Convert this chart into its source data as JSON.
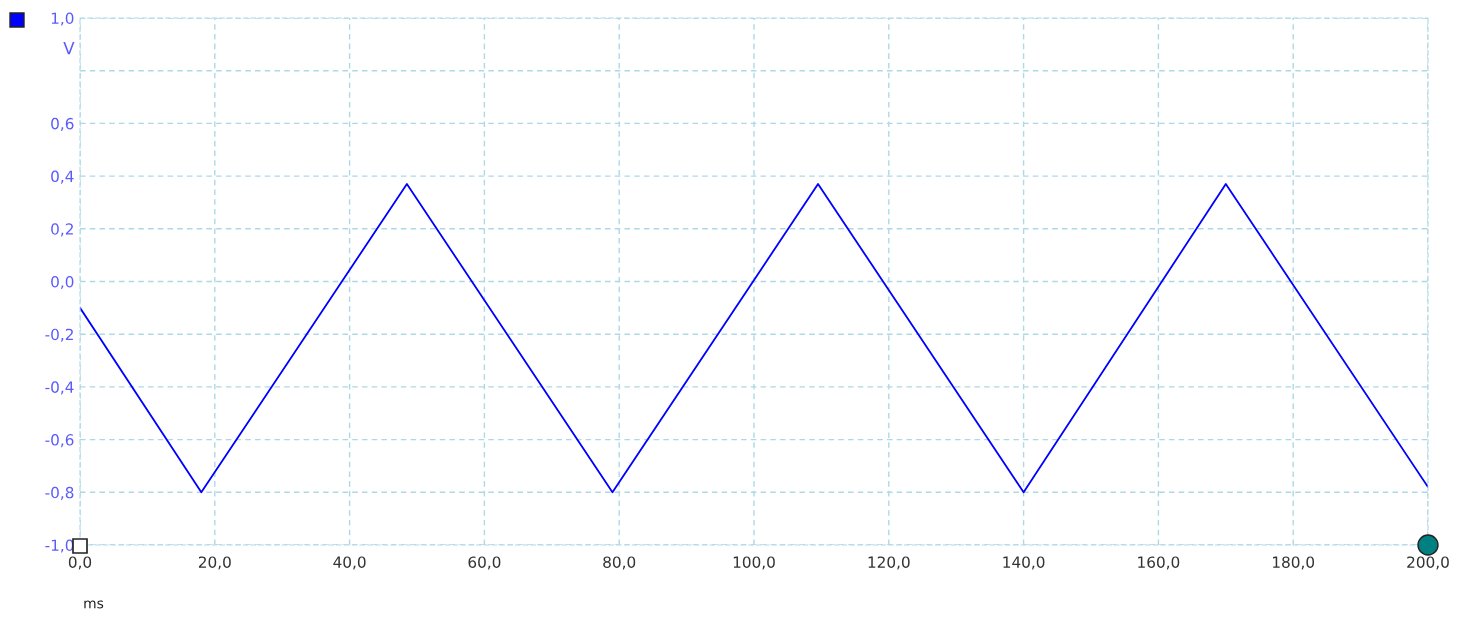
{
  "chart_data": {
    "type": "line",
    "xlabel": "ms",
    "ylabel": "V",
    "x": [
      0,
      18,
      48.5,
      79,
      109.5,
      140,
      170,
      200
    ],
    "series": [
      {
        "color": "#0000ff",
        "values": [
          -0.1,
          -0.8,
          0.37,
          -0.8,
          0.37,
          -0.8,
          0.37,
          -0.78
        ]
      }
    ],
    "xlim": [
      0,
      200
    ],
    "ylim": [
      -1.0,
      1.0
    ],
    "xticks": [
      {
        "value": 0,
        "label": "0,0"
      },
      {
        "value": 20,
        "label": "20,0"
      },
      {
        "value": 40,
        "label": "40,0"
      },
      {
        "value": 60,
        "label": "60,0"
      },
      {
        "value": 80,
        "label": "80,0"
      },
      {
        "value": 100,
        "label": "100,0"
      },
      {
        "value": 120,
        "label": "120,0"
      },
      {
        "value": 140,
        "label": "140,0"
      },
      {
        "value": 160,
        "label": "160,0"
      },
      {
        "value": 180,
        "label": "180,0"
      },
      {
        "value": 200,
        "label": "200,0"
      }
    ],
    "yticks": [
      {
        "value": -1.0,
        "label": "-1,0"
      },
      {
        "value": -0.8,
        "label": "-0,8"
      },
      {
        "value": -0.6,
        "label": "-0,6"
      },
      {
        "value": -0.4,
        "label": "-0,4"
      },
      {
        "value": -0.2,
        "label": "-0,2"
      },
      {
        "value": 0.0,
        "label": "0,0"
      },
      {
        "value": 0.2,
        "label": "0,2"
      },
      {
        "value": 0.4,
        "label": "0,4"
      },
      {
        "value": 0.6,
        "label": "0,6"
      },
      {
        "value": 0.8,
        "label": null
      },
      {
        "value": 1.0,
        "label": "1,0"
      }
    ],
    "grid": true,
    "line_style": "solid"
  }
}
